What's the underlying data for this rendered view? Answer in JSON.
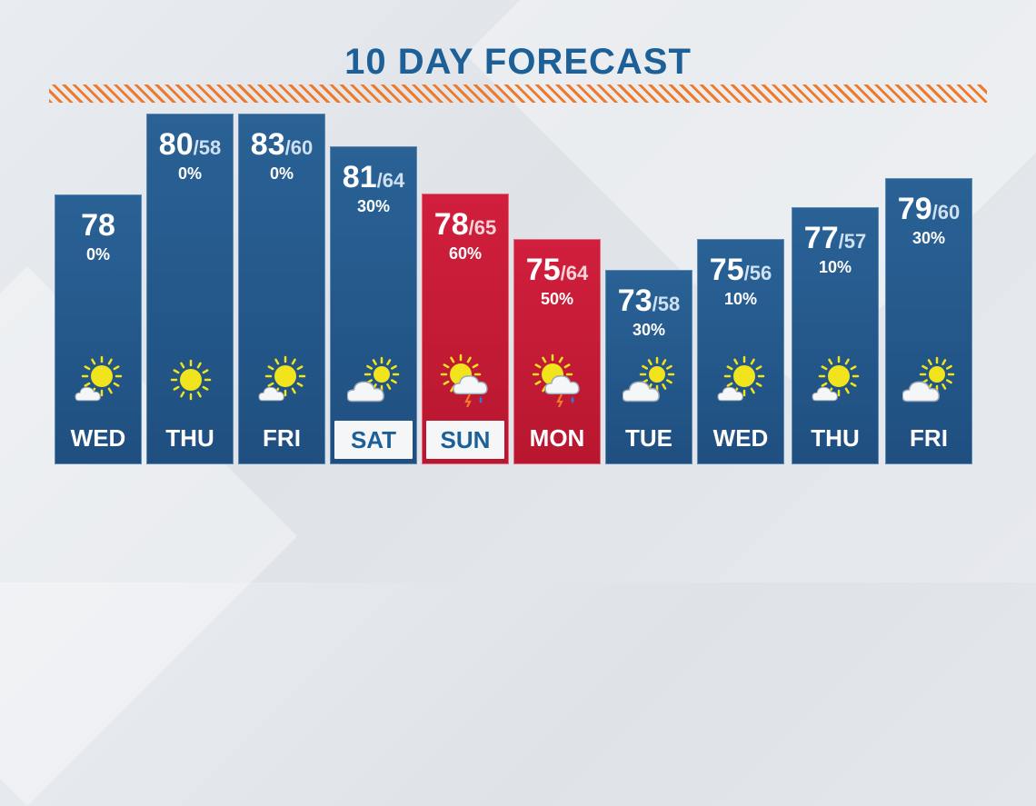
{
  "title": "10 DAY FORECAST",
  "days": [
    {
      "day": "WED",
      "hi": "78",
      "lo": "",
      "precip": "0%",
      "icon": "partly-sunny-icon",
      "theme": "blue",
      "boxed": false
    },
    {
      "day": "THU",
      "hi": "80",
      "lo": "/58",
      "precip": "0%",
      "icon": "sun-icon",
      "theme": "blue",
      "boxed": false
    },
    {
      "day": "FRI",
      "hi": "83",
      "lo": "/60",
      "precip": "0%",
      "icon": "partly-sunny-icon",
      "theme": "blue",
      "boxed": false
    },
    {
      "day": "SAT",
      "hi": "81",
      "lo": "/64",
      "precip": "30%",
      "icon": "partly-cloudy-icon",
      "theme": "blue",
      "boxed": true
    },
    {
      "day": "SUN",
      "hi": "78",
      "lo": "/65",
      "precip": "60%",
      "icon": "storm-sun-icon",
      "theme": "red",
      "boxed": true
    },
    {
      "day": "MON",
      "hi": "75",
      "lo": "/64",
      "precip": "50%",
      "icon": "storm-sun-icon",
      "theme": "red",
      "boxed": false
    },
    {
      "day": "TUE",
      "hi": "73",
      "lo": "/58",
      "precip": "30%",
      "icon": "partly-cloudy-icon",
      "theme": "blue",
      "boxed": false
    },
    {
      "day": "WED",
      "hi": "75",
      "lo": "/56",
      "precip": "10%",
      "icon": "partly-sunny-icon",
      "theme": "blue",
      "boxed": false
    },
    {
      "day": "THU",
      "hi": "77",
      "lo": "/57",
      "precip": "10%",
      "icon": "partly-sunny-icon",
      "theme": "blue",
      "boxed": false
    },
    {
      "day": "FRI",
      "hi": "79",
      "lo": "/60",
      "precip": "30%",
      "icon": "partly-cloudy-icon",
      "theme": "blue",
      "boxed": false
    }
  ],
  "colors": {
    "blue": "#1f5385",
    "red": "#c51b36",
    "accent": "#f07a2a",
    "sun": "#f1e31c"
  }
}
